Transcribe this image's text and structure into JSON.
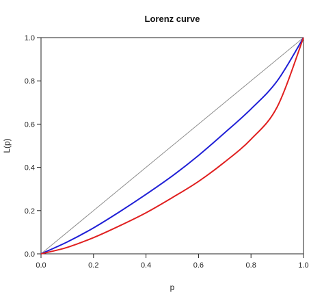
{
  "chart_data": {
    "type": "line",
    "title": "Lorenz curve",
    "xlabel": "p",
    "ylabel": "L(p)",
    "xlim": [
      0,
      1
    ],
    "ylim": [
      0,
      1
    ],
    "x_ticks": [
      "0.0",
      "0.2",
      "0.4",
      "0.6",
      "0.8",
      "1.0"
    ],
    "y_ticks": [
      "0.0",
      "0.2",
      "0.4",
      "0.6",
      "0.8",
      "1.0"
    ],
    "grid": false,
    "legend": "none",
    "series": [
      {
        "color": "#8c8c8c",
        "x": [
          0,
          1
        ],
        "y": [
          0,
          1
        ]
      },
      {
        "color": "#1f1fd6",
        "x": [
          0,
          0.1,
          0.2,
          0.3,
          0.4,
          0.5,
          0.6,
          0.7,
          0.8,
          0.9,
          1.0
        ],
        "y": [
          0,
          0.055,
          0.12,
          0.195,
          0.275,
          0.36,
          0.455,
          0.56,
          0.67,
          0.8,
          1.0
        ]
      },
      {
        "color": "#e02020",
        "x": [
          0,
          0.1,
          0.2,
          0.3,
          0.4,
          0.5,
          0.6,
          0.7,
          0.8,
          0.9,
          1.0
        ],
        "y": [
          0,
          0.03,
          0.075,
          0.13,
          0.19,
          0.26,
          0.335,
          0.425,
          0.53,
          0.68,
          1.0
        ]
      }
    ]
  }
}
